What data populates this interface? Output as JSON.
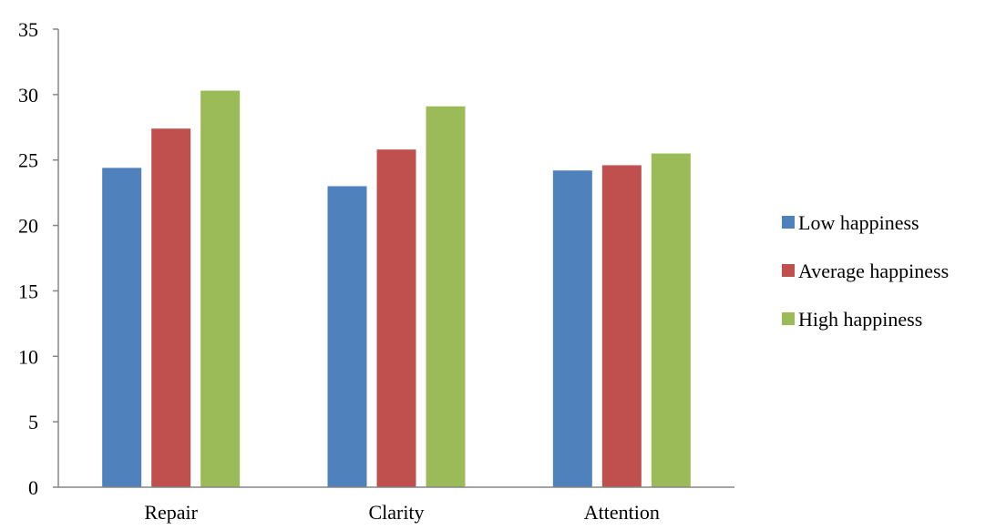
{
  "chart_data": {
    "type": "bar",
    "categories": [
      "Repair",
      "Clarity",
      "Attention"
    ],
    "series": [
      {
        "name": "Low happiness",
        "color": "#4f81bd",
        "values": [
          24.4,
          23.0,
          24.2
        ]
      },
      {
        "name": "Average happiness",
        "color": "#c0504d",
        "values": [
          27.4,
          25.8,
          24.6
        ]
      },
      {
        "name": "High happiness",
        "color": "#9bbb59",
        "values": [
          30.3,
          29.1,
          25.5
        ]
      }
    ],
    "ylim": [
      0,
      35
    ],
    "yticks": [
      0,
      5,
      10,
      15,
      20,
      25,
      30,
      35
    ],
    "grid": false,
    "legend": "right",
    "title": "",
    "xlabel": "",
    "ylabel": ""
  }
}
